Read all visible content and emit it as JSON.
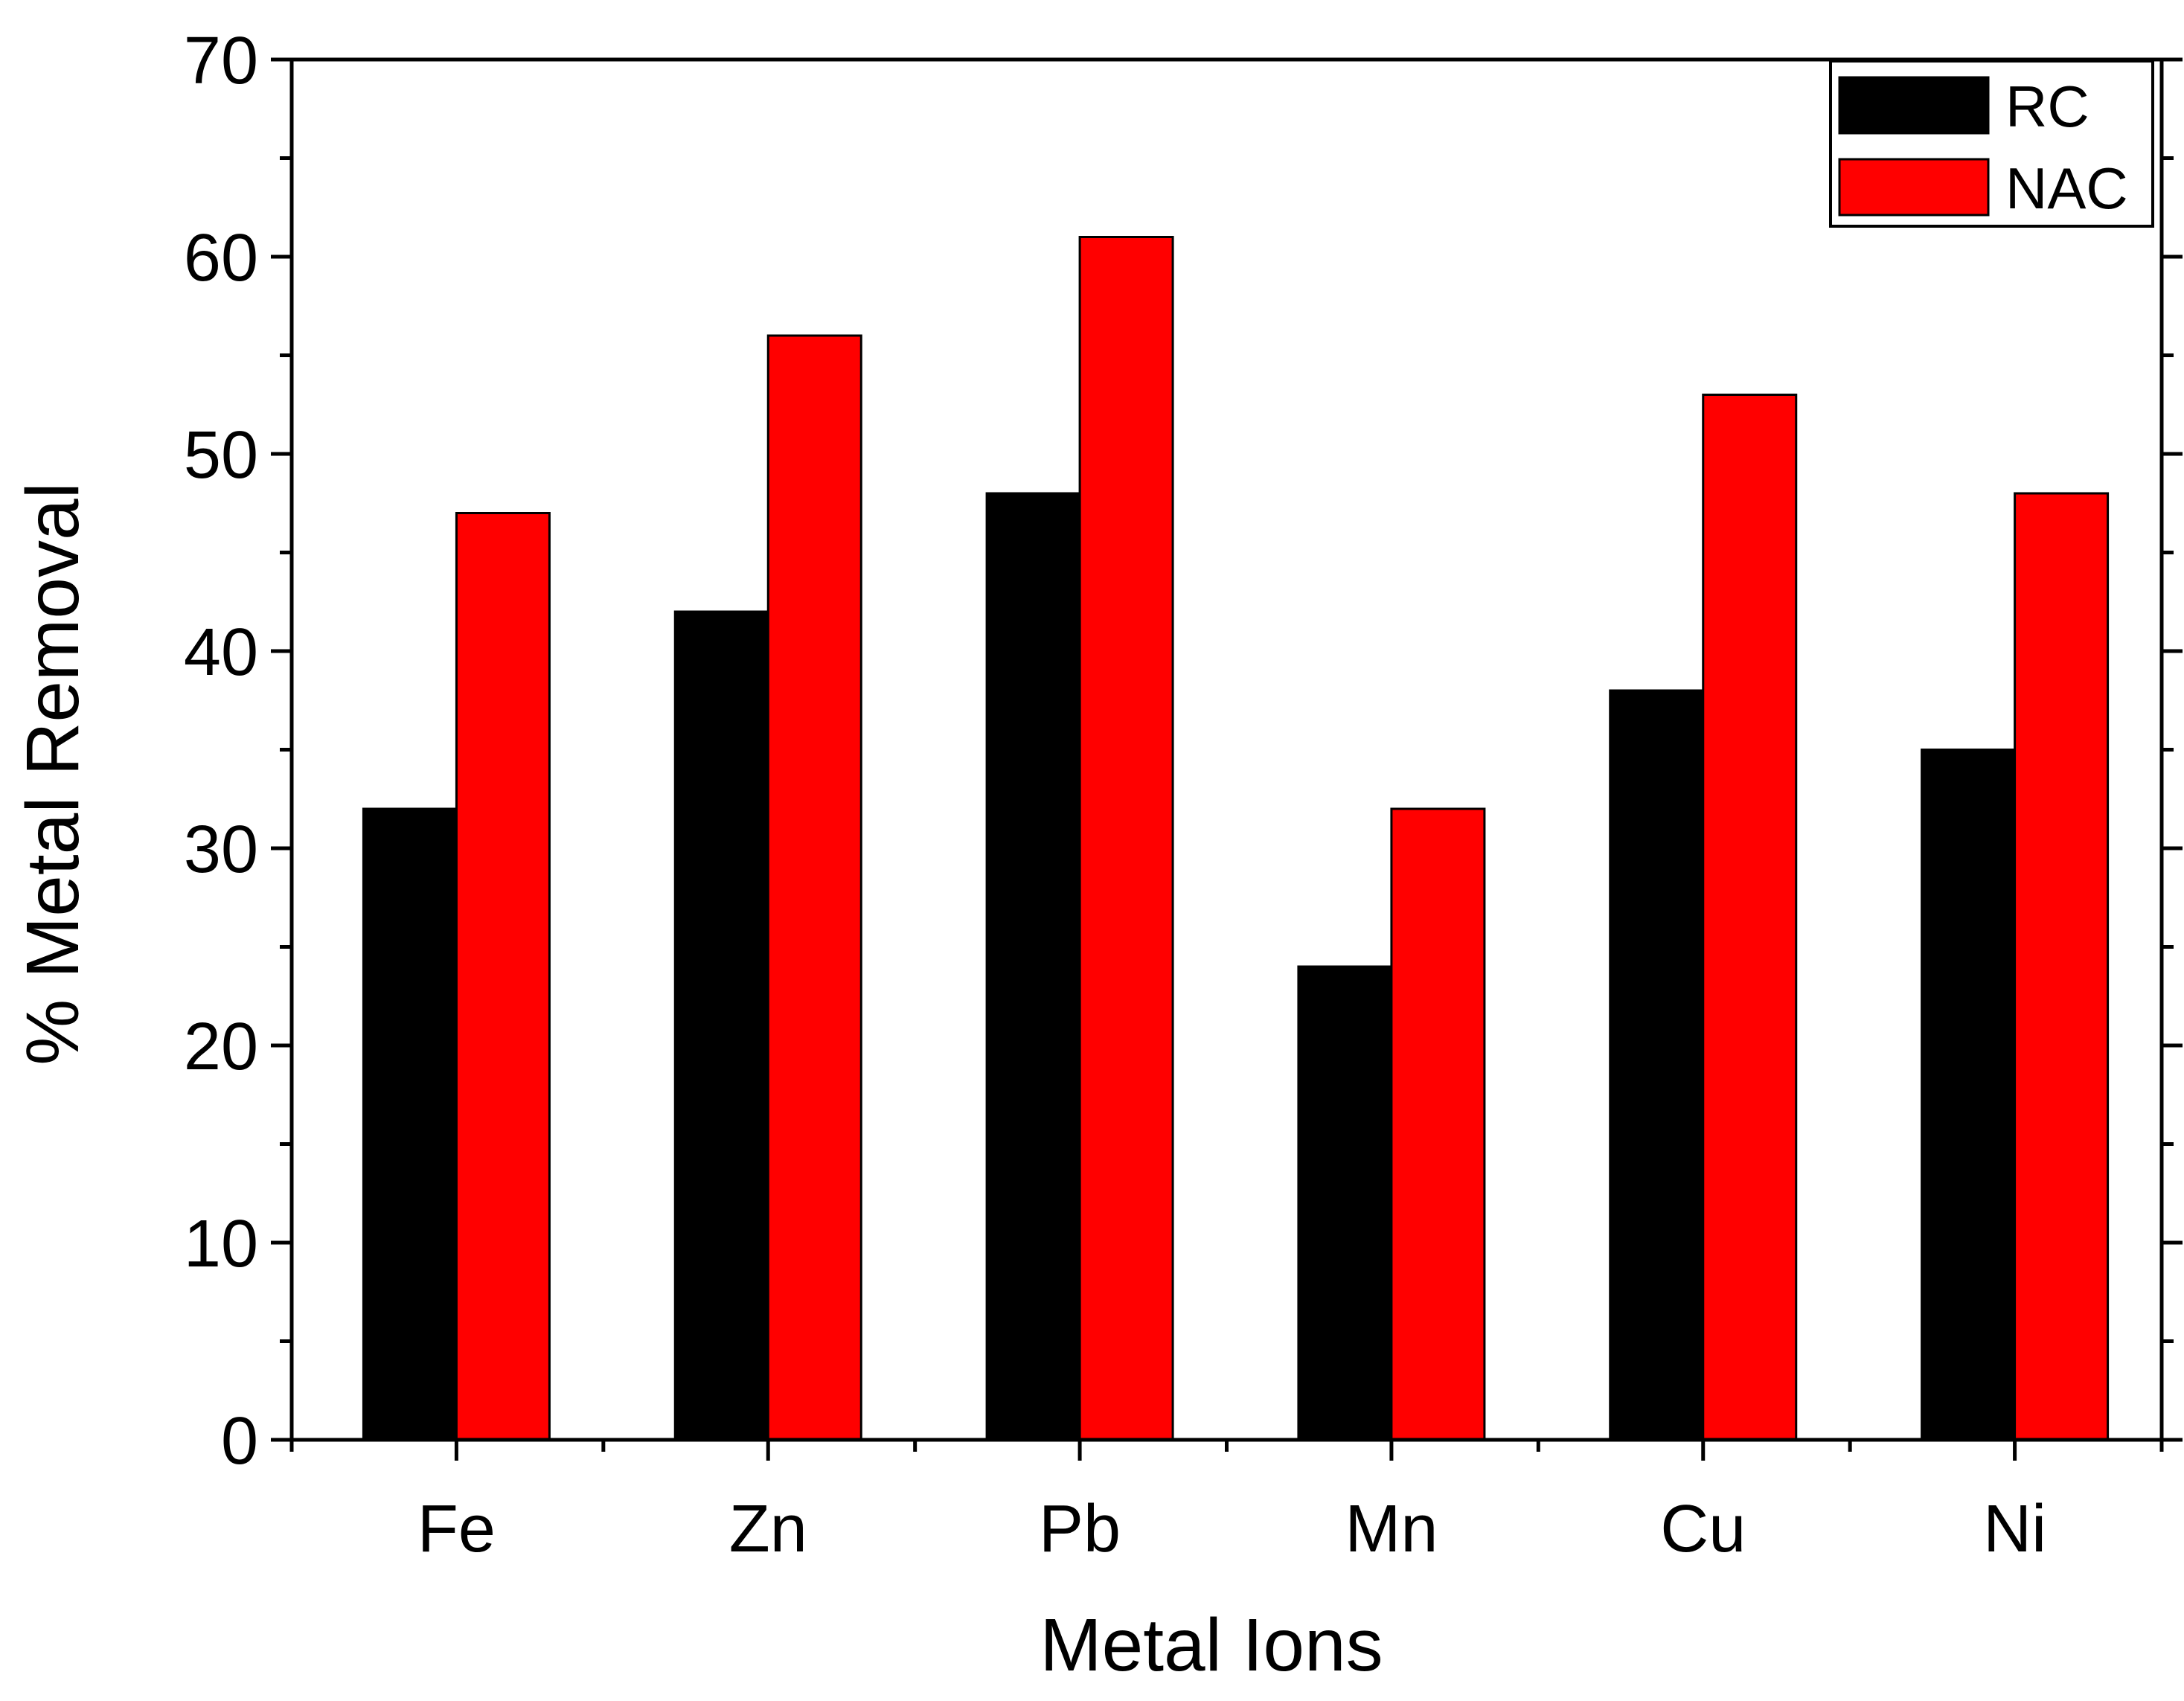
{
  "chart_data": {
    "type": "bar",
    "title": "",
    "xlabel": "Metal Ions",
    "ylabel": "% Metal Removal",
    "categories": [
      "Fe",
      "Zn",
      "Pb",
      "Mn",
      "Cu",
      "Ni"
    ],
    "series": [
      {
        "name": "RC",
        "color": "#000000",
        "values": [
          32,
          42,
          48,
          24,
          38,
          35
        ]
      },
      {
        "name": "NAC",
        "color": "#ff0000",
        "values": [
          47,
          56,
          61,
          32,
          53,
          48
        ]
      }
    ],
    "ylim": [
      0,
      70
    ],
    "yticks": [
      0,
      10,
      20,
      30,
      40,
      50,
      60,
      70
    ],
    "grid": false,
    "legend_position": "top-right"
  }
}
